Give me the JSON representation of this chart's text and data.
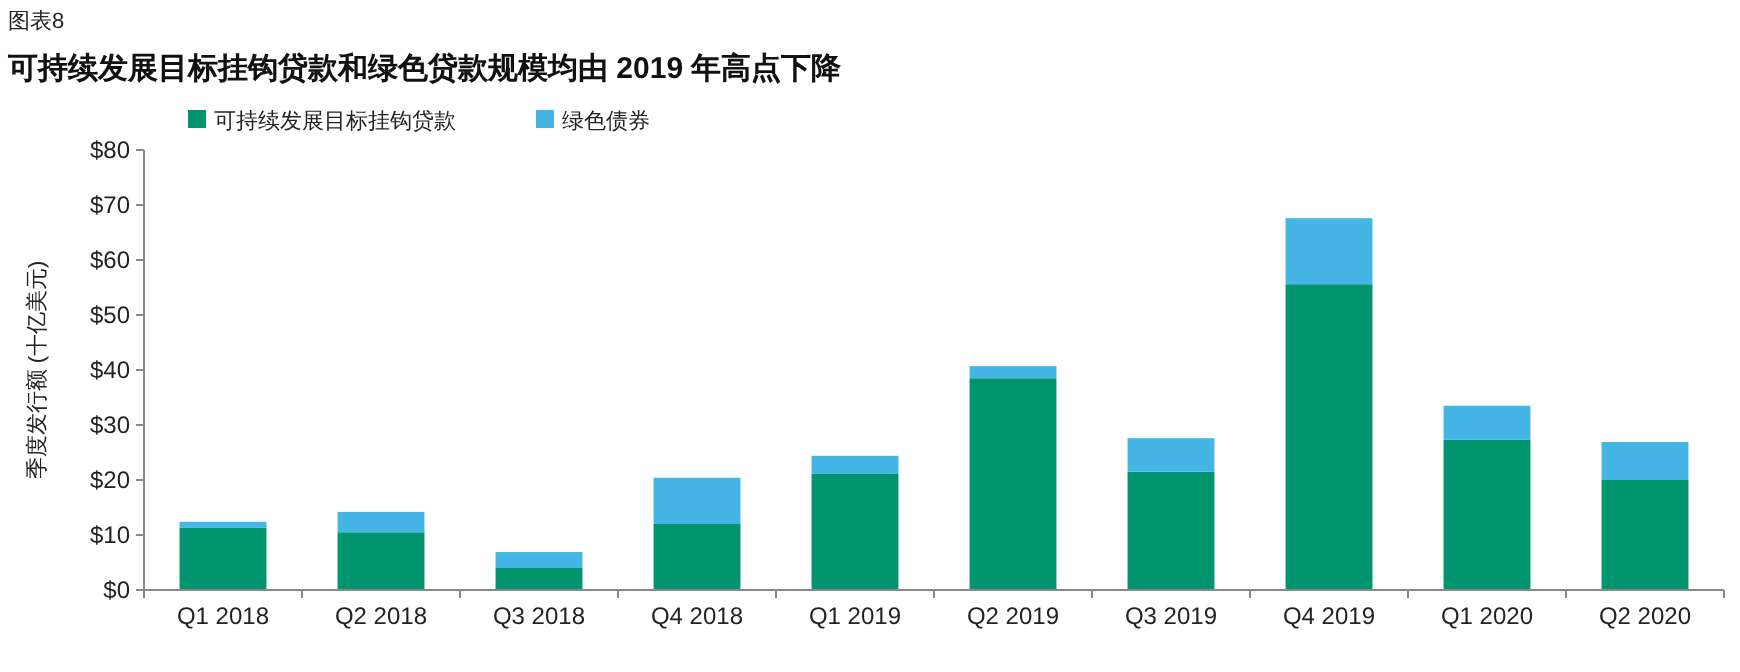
{
  "chart_data": {
    "type": "bar",
    "title": "可持续发展目标挂钩贷款和绿色贷款规模均由 2019 年高点下降",
    "annotations": [
      "图表8"
    ],
    "ylabel": "季度发行额 (十亿美元)",
    "categories": [
      "Q1 2018",
      "Q2 2018",
      "Q3 2018",
      "Q4 2018",
      "Q1 2019",
      "Q2 2019",
      "Q3 2019",
      "Q4 2019",
      "Q1 2020",
      "Q2 2020"
    ],
    "stacked": true,
    "series": [
      {
        "name": "可持续发展目标挂钩贷款",
        "color": "#00956f",
        "values": [
          11.3,
          10.5,
          4.0,
          12.0,
          21.1,
          38.5,
          21.5,
          55.6,
          27.3,
          20.0
        ]
      },
      {
        "name": "绿色债券",
        "color": "#44b5e5",
        "values": [
          1.1,
          3.7,
          2.9,
          8.4,
          3.3,
          2.2,
          6.1,
          12.0,
          6.2,
          6.9
        ]
      }
    ],
    "ylim": [
      0,
      80
    ],
    "yticks": [
      {
        "value": 0,
        "label": "$0"
      },
      {
        "value": 10,
        "label": "$10"
      },
      {
        "value": 20,
        "label": "$20"
      },
      {
        "value": 30,
        "label": "$30"
      },
      {
        "value": 40,
        "label": "$40"
      },
      {
        "value": 50,
        "label": "$50"
      },
      {
        "value": 60,
        "label": "$60"
      },
      {
        "value": 70,
        "label": "$70"
      },
      {
        "value": 80,
        "label": "$80"
      }
    ],
    "legend": "top left",
    "grid": false
  }
}
